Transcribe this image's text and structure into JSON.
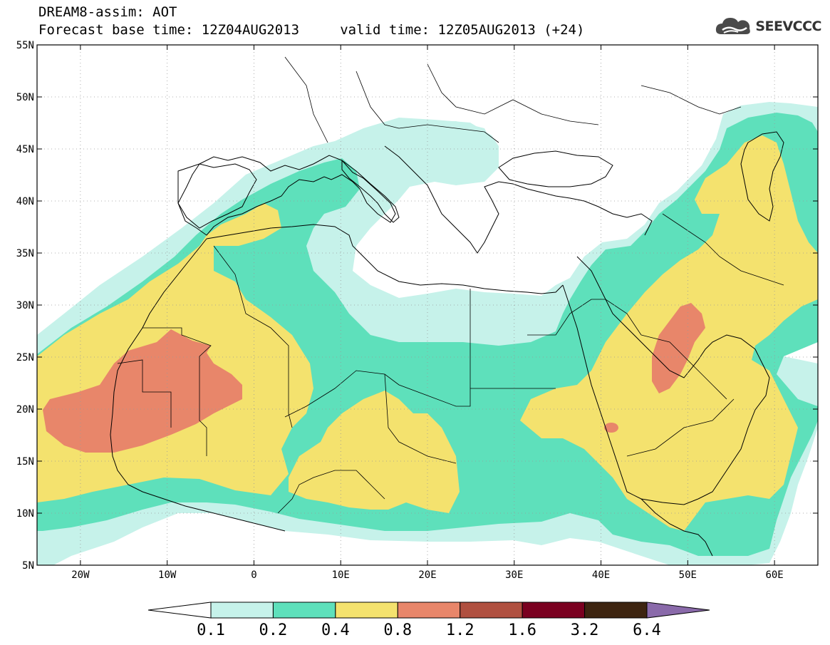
{
  "header": {
    "title_line1": "DREAM8-assim: AOT",
    "title_line2": "Forecast base time: 12Z04AUG2013     valid time: 12Z05AUG2013 (+24)"
  },
  "logo": {
    "text": "SEEVCCC",
    "icon": "cloud-logo-icon"
  },
  "map": {
    "lon_range": [
      -25,
      65
    ],
    "lat_range": [
      5,
      55
    ],
    "lon_ticks": [
      {
        "value": -20,
        "label": "20W"
      },
      {
        "value": -10,
        "label": "10W"
      },
      {
        "value": 0,
        "label": "0"
      },
      {
        "value": 10,
        "label": "10E"
      },
      {
        "value": 20,
        "label": "20E"
      },
      {
        "value": 30,
        "label": "30E"
      },
      {
        "value": 40,
        "label": "40E"
      },
      {
        "value": 50,
        "label": "50E"
      },
      {
        "value": 60,
        "label": "60E"
      }
    ],
    "lat_ticks": [
      {
        "value": 55,
        "label": "55N"
      },
      {
        "value": 50,
        "label": "50N"
      },
      {
        "value": 45,
        "label": "45N"
      },
      {
        "value": 40,
        "label": "40N"
      },
      {
        "value": 35,
        "label": "35N"
      },
      {
        "value": 30,
        "label": "30N"
      },
      {
        "value": 25,
        "label": "25N"
      },
      {
        "value": 20,
        "label": "20N"
      },
      {
        "value": 15,
        "label": "15N"
      },
      {
        "value": 10,
        "label": "10N"
      },
      {
        "value": 5,
        "label": "5N"
      }
    ],
    "grid": "dotted"
  },
  "legend": {
    "thresholds": [
      "0.1",
      "0.2",
      "0.4",
      "0.8",
      "1.2",
      "1.6",
      "3.2",
      "6.4"
    ],
    "colors": [
      "#ffffff",
      "#c6f2ea",
      "#5ee0bb",
      "#f4e26e",
      "#e8866a",
      "#b05040",
      "#7a0020",
      "#3d2410",
      "#8a6aaa"
    ]
  },
  "colors": {
    "level1": "#c6f2ea",
    "level2": "#5ee0bb",
    "level3": "#f4e26e",
    "level4": "#e8866a",
    "level5": "#b05040",
    "level6": "#7a0020",
    "level7": "#3d2410",
    "level8": "#8a6aaa"
  }
}
